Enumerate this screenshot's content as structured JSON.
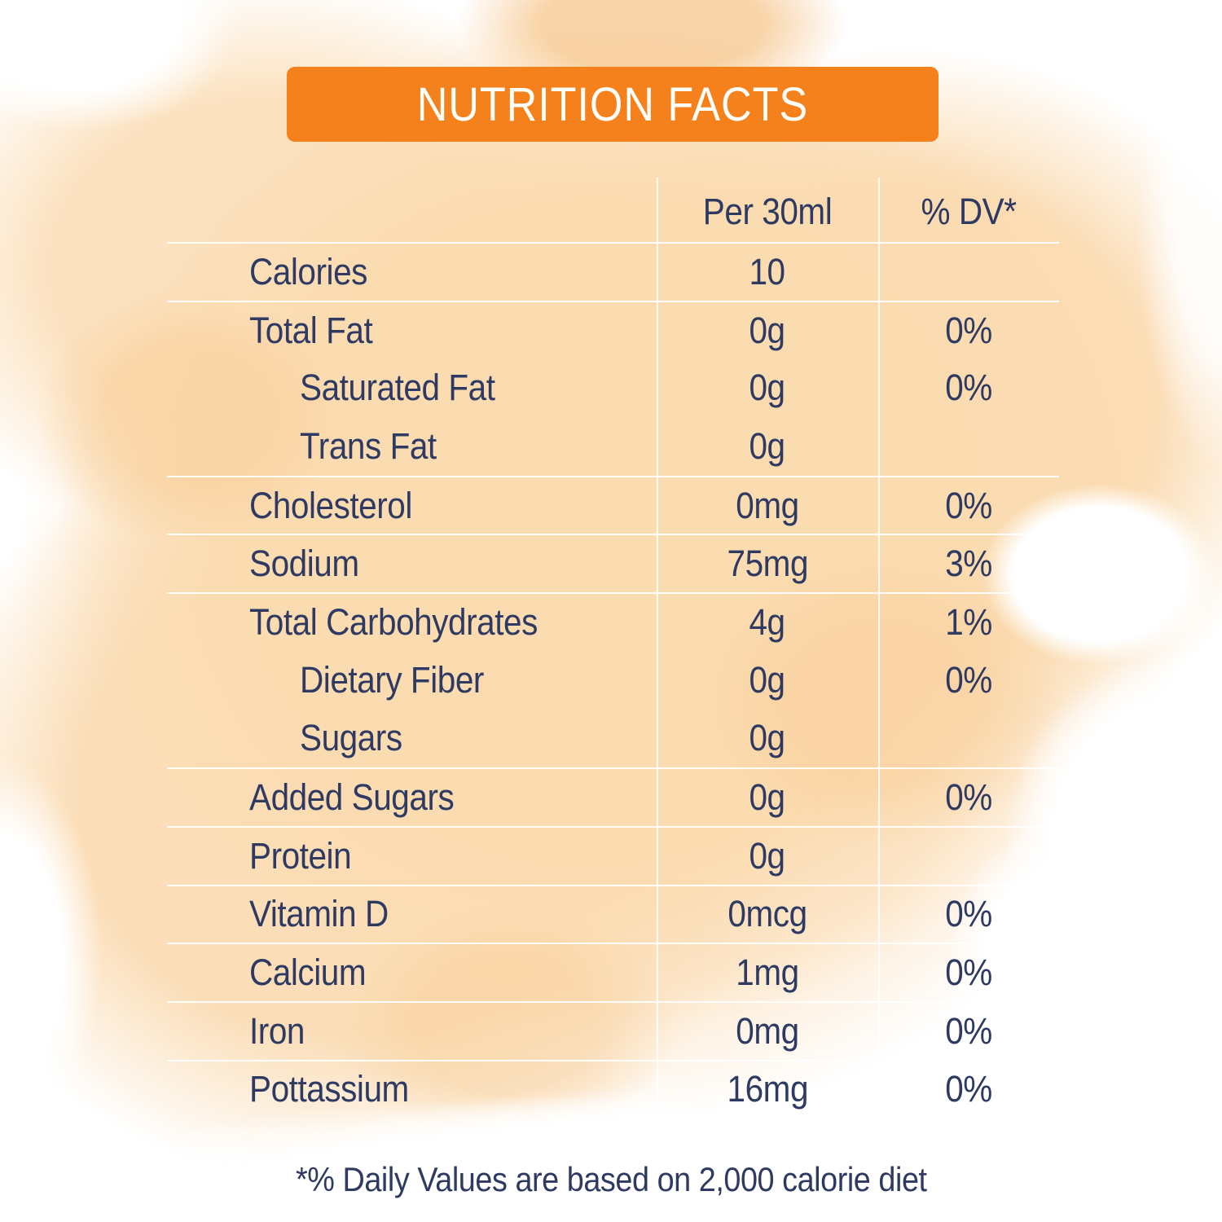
{
  "header": {
    "title": "NUTRITION FACTS"
  },
  "table": {
    "columns": [
      "",
      "Per 30ml",
      "% DV*"
    ],
    "rows": [
      {
        "label": "Calories",
        "amount": "10",
        "dv": "",
        "indent": false,
        "separator": true
      },
      {
        "label": "Total Fat",
        "amount": "0g",
        "dv": "0%",
        "indent": false,
        "separator": true
      },
      {
        "label": "Saturated Fat",
        "amount": "0g",
        "dv": "0%",
        "indent": true,
        "separator": false
      },
      {
        "label": "Trans Fat",
        "amount": "0g",
        "dv": "",
        "indent": true,
        "separator": false
      },
      {
        "label": "Cholesterol",
        "amount": "0mg",
        "dv": "0%",
        "indent": false,
        "separator": true
      },
      {
        "label": "Sodium",
        "amount": "75mg",
        "dv": "3%",
        "indent": false,
        "separator": true
      },
      {
        "label": "Total Carbohydrates",
        "amount": "4g",
        "dv": "1%",
        "indent": false,
        "separator": true
      },
      {
        "label": "Dietary Fiber",
        "amount": "0g",
        "dv": "0%",
        "indent": true,
        "separator": false
      },
      {
        "label": "Sugars",
        "amount": "0g",
        "dv": "",
        "indent": true,
        "separator": false
      },
      {
        "label": "Added Sugars",
        "amount": "0g",
        "dv": "0%",
        "indent": false,
        "separator": true
      },
      {
        "label": "Protein",
        "amount": "0g",
        "dv": "",
        "indent": false,
        "separator": true
      },
      {
        "label": "Vitamin D",
        "amount": "0mcg",
        "dv": "0%",
        "indent": false,
        "separator": true
      },
      {
        "label": "Calcium",
        "amount": "1mg",
        "dv": "0%",
        "indent": false,
        "separator": true
      },
      {
        "label": "Iron",
        "amount": "0mg",
        "dv": "0%",
        "indent": false,
        "separator": true
      },
      {
        "label": "Pottassium",
        "amount": "16mg",
        "dv": "0%",
        "indent": false,
        "separator": true
      }
    ]
  },
  "footer": {
    "note": "*% Daily Values are based on 2,000 calorie diet"
  },
  "colors": {
    "accent_orange": "#F4811B",
    "text_navy": "#2F3A63",
    "divider_white": "#FFFFFF",
    "wash_peach": "#FBDBB0"
  }
}
